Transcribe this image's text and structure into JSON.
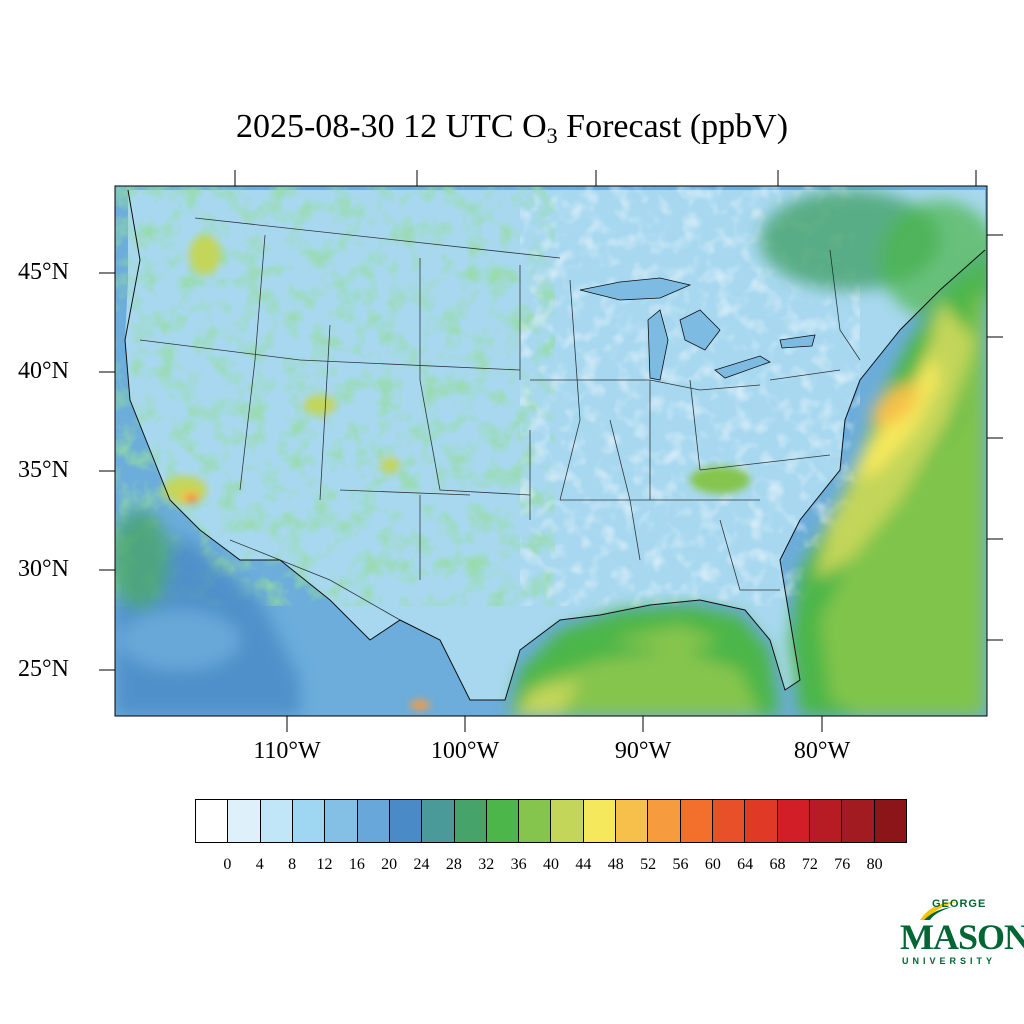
{
  "title": {
    "main": "2025-08-30 12 UTC O",
    "sub": "3",
    "tail": " Forecast (ppbV)"
  },
  "lat_labels": [
    "45°N",
    "40°N",
    "35°N",
    "30°N",
    "25°N"
  ],
  "lon_labels": [
    "110°W",
    "100°W",
    "90°W",
    "80°W"
  ],
  "colorbar": {
    "colors": [
      "#ffffff",
      "#def1fa",
      "#c1e6f7",
      "#9fd6f2",
      "#84c0e6",
      "#68a7d9",
      "#4a8ac6",
      "#4a9a9a",
      "#46a36a",
      "#4cb64a",
      "#86c54d",
      "#c3d65a",
      "#f6e85c",
      "#f7c04a",
      "#f79b3f",
      "#f26f2c",
      "#e8502a",
      "#e03a27",
      "#d21f27",
      "#b71c24",
      "#a11b20",
      "#8c1519"
    ],
    "labels": [
      "0",
      "4",
      "8",
      "12",
      "16",
      "20",
      "24",
      "28",
      "32",
      "36",
      "40",
      "44",
      "48",
      "52",
      "56",
      "60",
      "64",
      "68",
      "72",
      "76",
      "80"
    ]
  },
  "logo": {
    "line1": "GEORGE",
    "line2": "MASON",
    "line3": "UNIVERSITY"
  },
  "colors": {
    "ocean": "#6fa9d6",
    "land_base": "#9fd2ef",
    "logo_green": "#006633",
    "logo_gold": "#f6c400"
  }
}
